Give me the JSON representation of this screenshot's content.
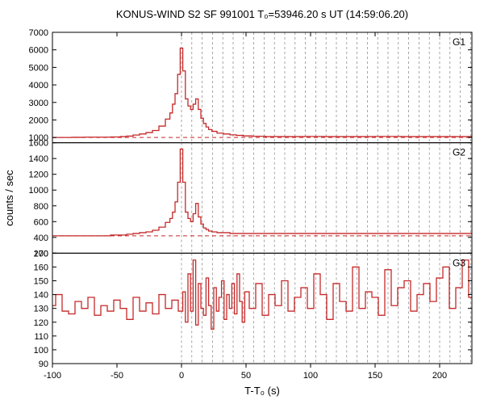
{
  "title": "KONUS-WIND S2 SF 991001 T₀=53946.20 s UT (14:59:06.20)",
  "xlabel": "T-T₀ (s)",
  "ylabel": "counts / sec",
  "xlim": [
    -100,
    225
  ],
  "xticks": [
    -100,
    -50,
    0,
    50,
    100,
    150,
    200
  ],
  "background_color": "#ffffff",
  "line_color": "#c62828",
  "dashed_color": "#c62828",
  "grid_color": "#808080",
  "axis_color": "#000000",
  "vgrid_start": 0,
  "vgrid_step": 8.0,
  "vgrid_end": 225,
  "panels": [
    {
      "label": "G1",
      "ylim": [
        700,
        7000
      ],
      "yticks": [
        1000,
        2000,
        3000,
        4000,
        5000,
        6000,
        7000
      ],
      "baseline": 1000,
      "x": [
        -100,
        -90,
        -80,
        -70,
        -60,
        -50,
        -45,
        -40,
        -35,
        -30,
        -25,
        -20,
        -15,
        -10,
        -8,
        -6,
        -4,
        -2,
        0,
        2,
        4,
        6,
        8,
        10,
        12,
        14,
        16,
        18,
        20,
        22,
        25,
        30,
        35,
        40,
        45,
        50,
        60,
        70,
        80,
        90,
        100,
        120,
        140,
        160,
        180,
        200,
        225
      ],
      "y": [
        1000,
        1000,
        1010,
        1020,
        1020,
        1030,
        1050,
        1080,
        1140,
        1200,
        1280,
        1400,
        1650,
        2050,
        2400,
        2900,
        3500,
        4600,
        6100,
        4800,
        3200,
        2800,
        2600,
        2900,
        3200,
        2600,
        2100,
        1800,
        1600,
        1450,
        1350,
        1250,
        1200,
        1150,
        1120,
        1090,
        1070,
        1050,
        1050,
        1050,
        1060,
        1050,
        1050,
        1060,
        1050,
        1050,
        1050
      ]
    },
    {
      "label": "G2",
      "ylim": [
        200,
        1600
      ],
      "yticks": [
        200,
        400,
        600,
        800,
        1000,
        1200,
        1400,
        1600
      ],
      "baseline": 420,
      "x": [
        -100,
        -90,
        -80,
        -70,
        -60,
        -50,
        -45,
        -40,
        -35,
        -30,
        -25,
        -20,
        -15,
        -10,
        -8,
        -6,
        -4,
        -2,
        0,
        2,
        4,
        6,
        8,
        10,
        12,
        14,
        16,
        18,
        20,
        22,
        25,
        30,
        35,
        40,
        45,
        50,
        60,
        70,
        80,
        90,
        100,
        120,
        140,
        160,
        180,
        200,
        225
      ],
      "y": [
        420,
        420,
        420,
        420,
        420,
        430,
        430,
        440,
        450,
        460,
        470,
        490,
        530,
        590,
        640,
        720,
        850,
        1100,
        1520,
        1100,
        720,
        640,
        600,
        700,
        830,
        660,
        570,
        520,
        500,
        480,
        470,
        460,
        460,
        450,
        450,
        450,
        450,
        450,
        450,
        450,
        450,
        450,
        450,
        450,
        450,
        450,
        450
      ]
    },
    {
      "label": "G3",
      "ylim": [
        90,
        170
      ],
      "yticks": [
        90,
        100,
        110,
        120,
        130,
        140,
        150,
        160,
        170
      ],
      "baseline": null,
      "x": [
        -100,
        -95,
        -90,
        -85,
        -80,
        -75,
        -70,
        -65,
        -60,
        -55,
        -50,
        -45,
        -40,
        -35,
        -30,
        -25,
        -20,
        -15,
        -10,
        -5,
        0,
        2,
        4,
        6,
        8,
        10,
        12,
        14,
        16,
        18,
        20,
        22,
        24,
        26,
        28,
        30,
        32,
        34,
        36,
        38,
        40,
        42,
        44,
        46,
        48,
        50,
        55,
        60,
        65,
        70,
        75,
        80,
        85,
        90,
        95,
        100,
        105,
        110,
        115,
        120,
        125,
        130,
        135,
        140,
        145,
        150,
        155,
        160,
        165,
        170,
        175,
        180,
        185,
        190,
        195,
        200,
        205,
        210,
        215,
        220,
        225
      ],
      "y": [
        132,
        140,
        128,
        126,
        135,
        130,
        138,
        125,
        132,
        128,
        136,
        130,
        122,
        138,
        128,
        134,
        126,
        140,
        130,
        136,
        128,
        142,
        120,
        155,
        128,
        165,
        118,
        148,
        130,
        125,
        152,
        132,
        115,
        145,
        128,
        138,
        150,
        122,
        140,
        130,
        148,
        126,
        155,
        135,
        120,
        142,
        130,
        148,
        125,
        140,
        132,
        150,
        128,
        138,
        145,
        130,
        155,
        140,
        122,
        148,
        135,
        128,
        160,
        130,
        142,
        138,
        125,
        158,
        132,
        145,
        150,
        128,
        140,
        148,
        135,
        152,
        160,
        130,
        145,
        165,
        138
      ]
    }
  ]
}
